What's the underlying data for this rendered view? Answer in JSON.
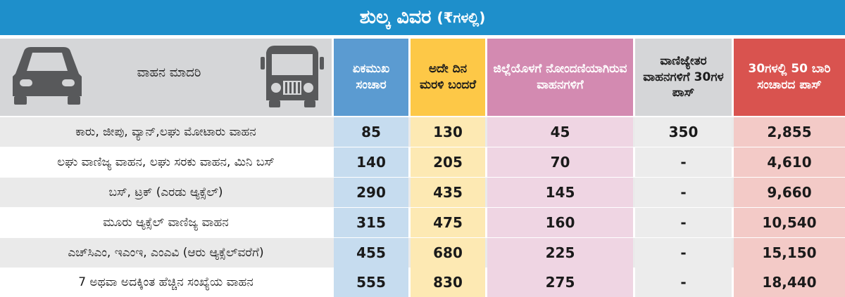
{
  "title": {
    "main": "ಶುಲ್ಕ ವಿವರ",
    "sub": "(₹ಗಳಲ್ಲಿ)"
  },
  "header": {
    "vehicle_type": "ವಾಹನ ಮಾದರಿ",
    "col_single": "ಏಕಮುಖ ಸಂಚಾರ",
    "col_return": "ಅದೇ ದಿನ ಮರಳಿ ಬಂದರೆ",
    "col_local": "ಜಿಲ್ಲೆಯೊಳಗೆ ನೋಂದಣಿಯಾಗಿರುವ ವಾಹನಗಳಿಗೆ",
    "col_noncommercial": "ವಾಣಿಜ್ಯೇತರ ವಾಹನಗಳಿಗೆ 30ಗಳ ಪಾಸ್",
    "col_monthly": "30ಗಳಲ್ಲಿ 50 ಬಾರಿ ಸಂಚಾರದ ಪಾಸ್"
  },
  "icons": {
    "car": "car-icon",
    "bus": "bus-icon"
  },
  "colors": {
    "title_bg": "#1e8fcb",
    "header_gray": "#d5d6d8",
    "col_single": "#5b9bd1",
    "col_return": "#fdc847",
    "col_local": "#d38ab1",
    "col_noncommercial": "#d5d6d8",
    "col_monthly": "#d9534f"
  },
  "rows": [
    {
      "type": "ಕಾರು, ಜೀಪು, ವ್ಯಾನ್,ಲಘು ಮೋಟಾರು ವಾಹನ",
      "single": "85",
      "return": "130",
      "local": "45",
      "noncommercial": "350",
      "monthly": "2,855"
    },
    {
      "type": "ಲಘು ವಾಣಿಜ್ಯ ವಾಹನ, ಲಘು ಸರಕು ವಾಹನ, ಮಿನಿ ಬಸ್",
      "single": "140",
      "return": "205",
      "local": "70",
      "noncommercial": "-",
      "monthly": "4,610"
    },
    {
      "type": "ಬಸ್, ಟ್ರಕ್ (ಎರಡು ಆ್ಯಕ್ಸೆಲ್)",
      "single": "290",
      "return": "435",
      "local": "145",
      "noncommercial": "-",
      "monthly": "9,660"
    },
    {
      "type": "ಮೂರು ಆ್ಯಕ್ಸೆಲ್ ವಾಣಿಜ್ಯ ವಾಹನ",
      "single": "315",
      "return": "475",
      "local": "160",
      "noncommercial": "-",
      "monthly": "10,540"
    },
    {
      "type": "ಎಚ್‌ಸಿಎಂ, ಇಎಂಇ, ಎಂಎವಿ (ಆರು ಆ್ಯಕ್ಸೆಲ್‌ವರೆಗೆ)",
      "single": "455",
      "return": "680",
      "local": "225",
      "noncommercial": "-",
      "monthly": "15,150"
    },
    {
      "type": "7 ಅಥವಾ ಅದಕ್ಕಿಂತ ಹೆಚ್ಚಿನ ಸಂಖ್ಯೆಯ ವಾಹನ",
      "single": "555",
      "return": "830",
      "local": "275",
      "noncommercial": "-",
      "monthly": "18,440"
    }
  ]
}
